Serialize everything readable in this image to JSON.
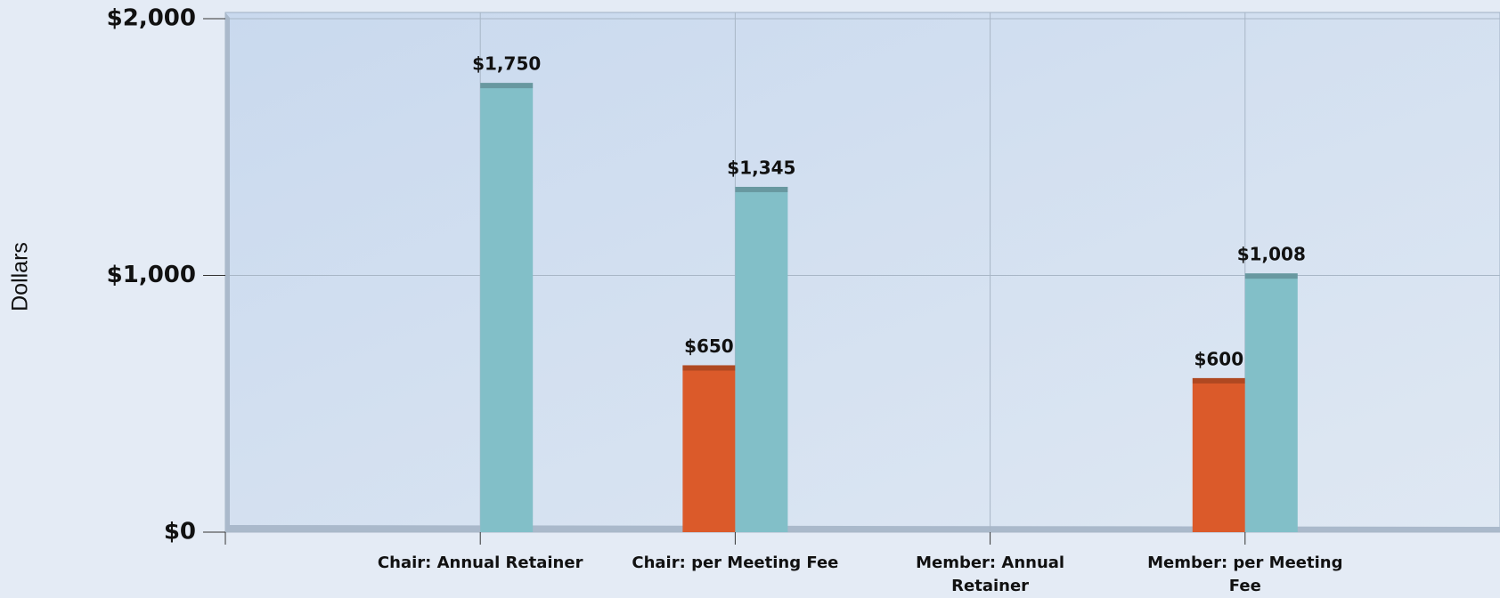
{
  "chart_data": {
    "type": "bar",
    "y_label": "Dollars",
    "categories": [
      "Chair: Annual Retainer",
      "Chair: per Meeting Fee",
      "Member: Annual Retainer",
      "Member: per Meeting Fee"
    ],
    "series": [
      {
        "color": "#db5a2a",
        "values": [
          null,
          650,
          null,
          600
        ],
        "value_labels": [
          null,
          "$650",
          null,
          "$600"
        ]
      },
      {
        "color": "#82bfc8",
        "values": [
          1750,
          1345,
          null,
          1008
        ],
        "value_labels": [
          "$1,750",
          "$1,345",
          null,
          "$1,008"
        ]
      }
    ],
    "ylim": [
      0,
      2000
    ],
    "yticks": [
      {
        "value": 0,
        "label": "$0"
      },
      {
        "value": 1000,
        "label": "$1,000"
      },
      {
        "value": 2000,
        "label": "$2,000"
      }
    ],
    "grid": true
  }
}
